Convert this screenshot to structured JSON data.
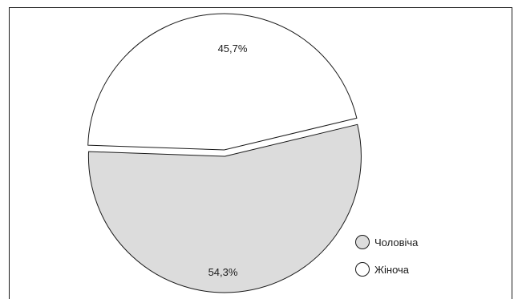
{
  "chart_data": {
    "type": "pie",
    "title": "",
    "categories": [
      "Чоловіча",
      "Жіноча"
    ],
    "values": [
      54.3,
      45.7
    ],
    "labels": [
      "54,3%",
      "45,7%"
    ],
    "colors": [
      "#dcdcdc",
      "#ffffff"
    ],
    "legend_position": "bottom-right",
    "exploded": true
  },
  "legend": {
    "items": [
      {
        "label": "Чоловіча",
        "color": "#dcdcdc"
      },
      {
        "label": "Жіноча",
        "color": "#ffffff"
      }
    ]
  }
}
